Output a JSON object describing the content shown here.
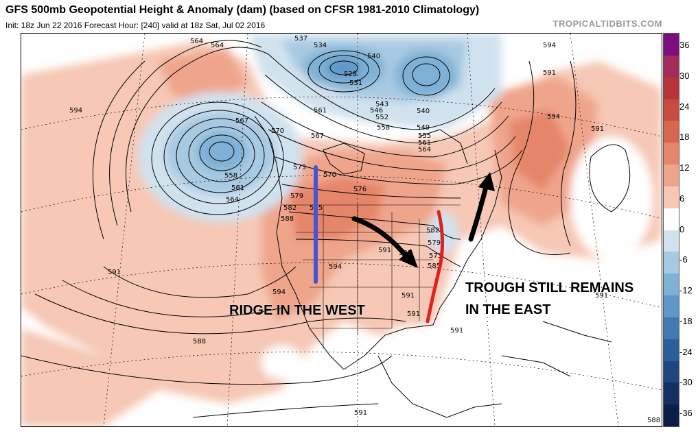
{
  "header": {
    "title": "GFS 500mb Geopotential Height & Anomaly (dam) (based on CFSR 1981-2010 Climatology)",
    "subtitle": "Init: 18z Jun 22 2016   Forecast Hour: [240]   valid at 18z Sat, Jul 02 2016",
    "credit": "TROPICALTIDBITS.COM"
  },
  "annotations": {
    "west": "RIDGE IN THE WEST",
    "east_line1": "TROUGH STILL REMAINS",
    "east_line2": "IN THE EAST"
  },
  "contour_labels": [
    "537",
    "534",
    "540",
    "528",
    "531",
    "543",
    "546",
    "552",
    "558",
    "540",
    "549",
    "555",
    "561",
    "564",
    "564",
    "564",
    "567",
    "570",
    "567",
    "561",
    "594",
    "558",
    "561",
    "564",
    "573",
    "570",
    "576",
    "579",
    "582",
    "588",
    "585",
    "591",
    "594",
    "594",
    "591",
    "582",
    "579",
    "573",
    "585",
    "591",
    "591",
    "591",
    "591",
    "588",
    "591",
    "594",
    "591",
    "594",
    "591",
    "591",
    "588"
  ],
  "colorbar": {
    "labels": [
      "36",
      "30",
      "24",
      "18",
      "12",
      "6",
      "0",
      "-6",
      "-12",
      "-18",
      "-24",
      "-30",
      "-36"
    ],
    "colors": [
      "#7a0f7d",
      "#a32a5d",
      "#b8333a",
      "#c94a40",
      "#d8664d",
      "#e5866a",
      "#efa58c",
      "#f6c8b5",
      "#ffffff",
      "#d0e2ee",
      "#a7c9e2",
      "#7fb0d5",
      "#5f98c8",
      "#3f7ab4",
      "#2a5f9c",
      "#1e4680",
      "#152f62",
      "#0c1d48"
    ],
    "accent_colors": {
      "ridge_line": "#4655d4",
      "trough_line": "#e02020",
      "arrow": "#000000"
    }
  }
}
